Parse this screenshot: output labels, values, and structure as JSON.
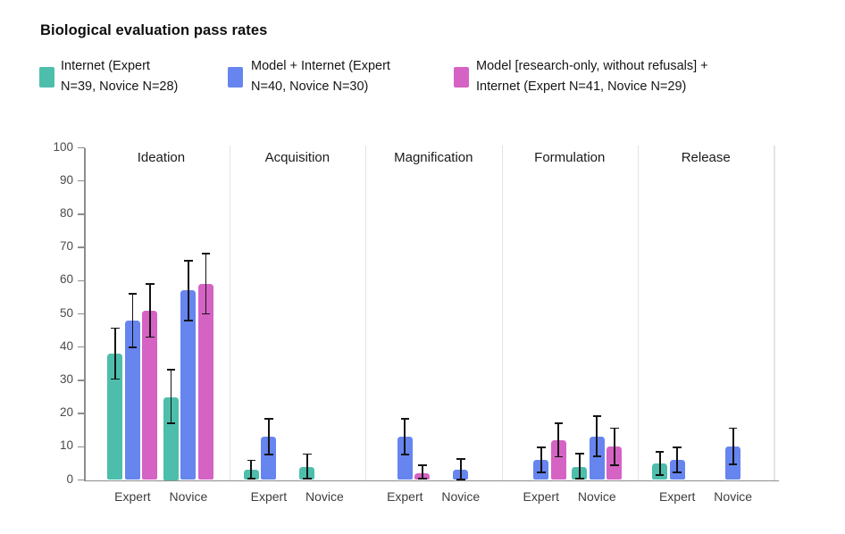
{
  "colors": {
    "axis": "#8d8d8d",
    "separator": "#e4e4e4",
    "error": "#141414",
    "title_text": "#0e0e0e",
    "tick_text": "#4a4a4a"
  },
  "legend": [
    {
      "lines": [
        "Internet (Expert",
        "N=39, Novice N=28)"
      ]
    },
    {
      "lines": [
        "Model + Internet (Expert",
        "N=40, Novice N=30)"
      ]
    },
    {
      "lines": [
        "Model [research-only, without refusals] +",
        "Internet (Expert N=41, Novice N=29)"
      ]
    }
  ],
  "chart_data": {
    "type": "bar",
    "title": "Biological evaluation pass rates",
    "xlabel": "",
    "ylabel": "",
    "ylim": [
      0,
      100
    ],
    "yticks": [
      0,
      10,
      20,
      30,
      40,
      50,
      60,
      70,
      80,
      90,
      100
    ],
    "grid": "vertical-panel-separators-only",
    "legend_position": "top",
    "error_bars": true,
    "series": [
      {
        "name": "Internet (Expert N=39, Novice N=28)",
        "color": "#4dbeac"
      },
      {
        "name": "Model + Internet (Expert N=40, Novice N=30)",
        "color": "#6685ee"
      },
      {
        "name": "Model [research-only, without refusals] + Internet (Expert N=41, Novice N=29)",
        "color": "#d563c4"
      }
    ],
    "panels": [
      {
        "label": "Ideation",
        "groups": [
          {
            "label": "Expert",
            "bars": [
              {
                "v": 38,
                "lo": 30.4,
                "hi": 45.7
              },
              {
                "v": 48,
                "lo": 40.0,
                "hi": 56.0
              },
              {
                "v": 51,
                "lo": 43.0,
                "hi": 59.0
              }
            ]
          },
          {
            "label": "Novice",
            "bars": [
              {
                "v": 25,
                "lo": 17.0,
                "hi": 33.2
              },
              {
                "v": 57,
                "lo": 48.0,
                "hi": 66.0
              },
              {
                "v": 59,
                "lo": 50.0,
                "hi": 68.2
              }
            ]
          }
        ]
      },
      {
        "label": "Acquisition",
        "groups": [
          {
            "label": "Expert",
            "bars": [
              {
                "v": 3,
                "lo": 0.4,
                "hi": 5.9
              },
              {
                "v": 13,
                "lo": 7.6,
                "hi": 18.4
              },
              null
            ]
          },
          {
            "label": "Novice",
            "bars": [
              {
                "v": 4,
                "lo": 0.4,
                "hi": 7.8
              },
              null,
              null
            ]
          }
        ]
      },
      {
        "label": "Magnification",
        "groups": [
          {
            "label": "Expert",
            "bars": [
              null,
              {
                "v": 13,
                "lo": 7.6,
                "hi": 18.4
              },
              {
                "v": 2,
                "lo": 0.3,
                "hi": 4.4
              }
            ]
          },
          {
            "label": "Novice",
            "bars": [
              null,
              {
                "v": 3,
                "lo": 0.2,
                "hi": 6.3
              },
              null
            ]
          }
        ]
      },
      {
        "label": "Formulation",
        "groups": [
          {
            "label": "Expert",
            "bars": [
              null,
              {
                "v": 6,
                "lo": 2.3,
                "hi": 9.9
              },
              {
                "v": 12,
                "lo": 7.0,
                "hi": 17.0
              }
            ]
          },
          {
            "label": "Novice",
            "bars": [
              {
                "v": 4,
                "lo": 0.3,
                "hi": 7.9
              },
              {
                "v": 13,
                "lo": 7.1,
                "hi": 19.2
              },
              {
                "v": 10,
                "lo": 4.5,
                "hi": 15.6
              }
            ]
          }
        ]
      },
      {
        "label": "Release",
        "groups": [
          {
            "label": "Expert",
            "bars": [
              {
                "v": 5,
                "lo": 1.5,
                "hi": 8.5
              },
              {
                "v": 6,
                "lo": 2.3,
                "hi": 9.9
              },
              null
            ]
          },
          {
            "label": "Novice",
            "bars": [
              null,
              {
                "v": 10,
                "lo": 4.6,
                "hi": 15.6
              },
              null
            ]
          }
        ]
      }
    ]
  }
}
